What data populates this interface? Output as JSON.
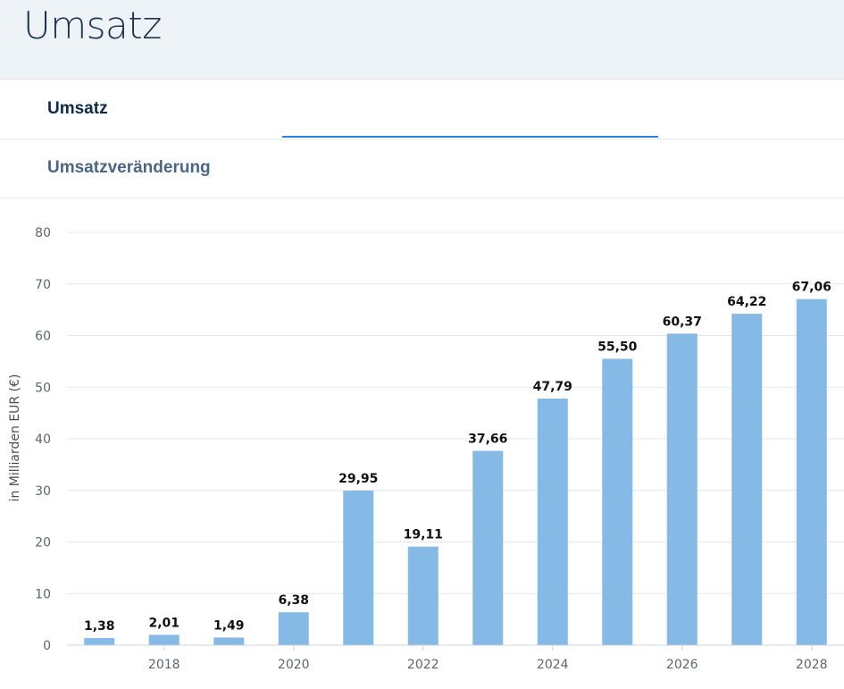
{
  "header": {
    "title": "Umsatz"
  },
  "tabs": [
    {
      "label": "Umsatz",
      "active": true
    },
    {
      "label": "Umsatzveränderung",
      "active": false
    }
  ],
  "colors": {
    "bar": "#85b9e6",
    "grid": "#e4e7eb",
    "accent": "#2f7de1",
    "title": "#1f3350"
  },
  "chart_data": {
    "type": "bar",
    "title": "",
    "xlabel": "",
    "ylabel": "in Milliarden EUR (€)",
    "ylim": [
      0,
      80
    ],
    "y_ticks": [
      0,
      10,
      20,
      30,
      40,
      50,
      60,
      70,
      80
    ],
    "categories": [
      "2017",
      "2018",
      "2019",
      "2020",
      "2021",
      "2022",
      "2023",
      "2024",
      "2025",
      "2026",
      "2027",
      "2028"
    ],
    "x_tick_labels": [
      "2018",
      "2020",
      "2022",
      "2024",
      "2026",
      "2028"
    ],
    "values": [
      1.38,
      2.01,
      1.49,
      6.38,
      29.95,
      19.11,
      37.66,
      47.79,
      55.5,
      60.37,
      64.22,
      67.06
    ],
    "value_labels": [
      "1,38",
      "2,01",
      "1,49",
      "6,38",
      "29,95",
      "19,11",
      "37,66",
      "47,79",
      "55,50",
      "60,37",
      "64,22",
      "67,06"
    ]
  }
}
